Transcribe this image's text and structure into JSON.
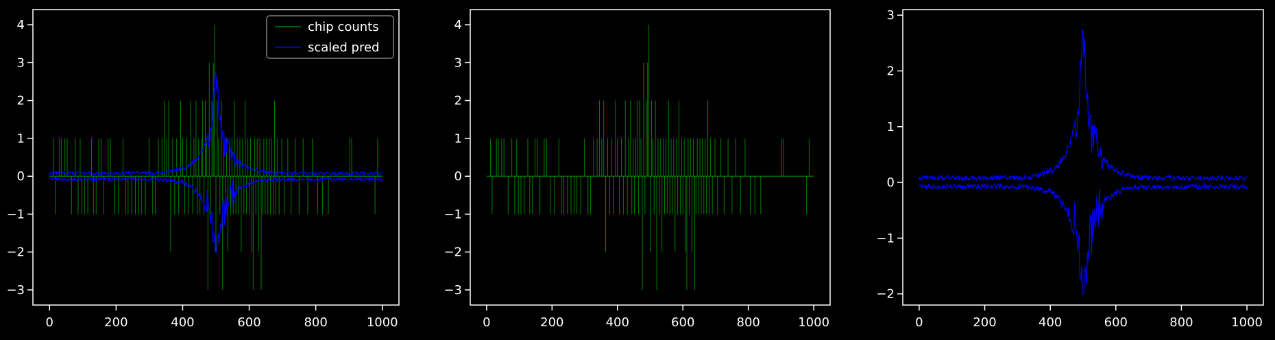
{
  "figure": {
    "background": "#000000",
    "axes_color": "#ffffff",
    "text_color": "#ffffff"
  },
  "colors": {
    "chip_counts": "#008000",
    "scaled_pred": "#0000ff"
  },
  "chart_data": [
    {
      "type": "line",
      "title": "",
      "xlabel": "",
      "ylabel": "",
      "xlim": [
        -50,
        1050
      ],
      "ylim": [
        -3.4,
        4.4
      ],
      "xticks": [
        0,
        200,
        400,
        600,
        800,
        1000
      ],
      "xtick_labels": [
        "0",
        "200",
        "400",
        "600",
        "800",
        "1000"
      ],
      "yticks": [
        -3,
        -2,
        -1,
        0,
        1,
        2,
        3,
        4
      ],
      "ytick_labels": [
        "−3",
        "−2",
        "−1",
        "0",
        "1",
        "2",
        "3",
        "4"
      ],
      "grid": false,
      "legend": {
        "position": "top-right",
        "entries": [
          "chip counts",
          "scaled pred"
        ]
      },
      "series": [
        {
          "name": "chip counts",
          "color": "#008000",
          "x_range": [
            0,
            1000
          ],
          "description_values": {
            "baseline": 0,
            "spikes": [
              [
                12,
                1
              ],
              [
                17,
                -1
              ],
              [
                30,
                1
              ],
              [
                36,
                1
              ],
              [
                46,
                1
              ],
              [
                53,
                1
              ],
              [
                66,
                -1
              ],
              [
                77,
                1
              ],
              [
                86,
                -1
              ],
              [
                92,
                1
              ],
              [
                97,
                -1
              ],
              [
                105,
                -1
              ],
              [
                115,
                -1
              ],
              [
                126,
                1
              ],
              [
                132,
                -1
              ],
              [
                140,
                -1
              ],
              [
                148,
                1
              ],
              [
                155,
                1
              ],
              [
                163,
                -1
              ],
              [
                176,
                1
              ],
              [
                183,
                1
              ],
              [
                195,
                -1
              ],
              [
                207,
                -1
              ],
              [
                221,
                1
              ],
              [
                229,
                -1
              ],
              [
                236,
                -1
              ],
              [
                247,
                -1
              ],
              [
                258,
                -1
              ],
              [
                268,
                -1
              ],
              [
                276,
                -1
              ],
              [
                288,
                -1
              ],
              [
                299,
                1
              ],
              [
                310,
                -1
              ],
              [
                318,
                -1
              ],
              [
                327,
                1
              ],
              [
                338,
                1
              ],
              [
                345,
                2
              ],
              [
                352,
                1
              ],
              [
                358,
                2
              ],
              [
                364,
                -2
              ],
              [
                370,
                1
              ],
              [
                376,
                -1
              ],
              [
                382,
                1
              ],
              [
                388,
                -1
              ],
              [
                394,
                2
              ],
              [
                400,
                1
              ],
              [
                406,
                -1
              ],
              [
                412,
                1
              ],
              [
                418,
                -1
              ],
              [
                424,
                2
              ],
              [
                430,
                -1
              ],
              [
                434,
                1
              ],
              [
                440,
                2
              ],
              [
                444,
                -1
              ],
              [
                448,
                1
              ],
              [
                452,
                -1
              ],
              [
                456,
                1
              ],
              [
                460,
                2
              ],
              [
                464,
                -1
              ],
              [
                468,
                2
              ],
              [
                472,
                1
              ],
              [
                476,
                -3
              ],
              [
                480,
                3
              ],
              [
                484,
                -1
              ],
              [
                488,
                2
              ],
              [
                492,
                3
              ],
              [
                496,
                4
              ],
              [
                500,
                -2
              ],
              [
                504,
                2
              ],
              [
                508,
                1
              ],
              [
                512,
                -1
              ],
              [
                516,
                2
              ],
              [
                520,
                -3
              ],
              [
                524,
                1
              ],
              [
                528,
                -1
              ],
              [
                532,
                1
              ],
              [
                536,
                -2
              ],
              [
                540,
                1
              ],
              [
                544,
                -1
              ],
              [
                548,
                1
              ],
              [
                552,
                -1
              ],
              [
                556,
                2
              ],
              [
                560,
                -1
              ],
              [
                564,
                1
              ],
              [
                568,
                -1
              ],
              [
                572,
                1
              ],
              [
                576,
                -2
              ],
              [
                580,
                1
              ],
              [
                584,
                -1
              ],
              [
                588,
                2
              ],
              [
                592,
                -1
              ],
              [
                596,
                1
              ],
              [
                600,
                -1
              ],
              [
                604,
                1
              ],
              [
                608,
                -2
              ],
              [
                612,
                -3
              ],
              [
                616,
                1
              ],
              [
                620,
                -1
              ],
              [
                624,
                1
              ],
              [
                628,
                -2
              ],
              [
                632,
                1
              ],
              [
                636,
                -3
              ],
              [
                640,
                -1
              ],
              [
                644,
                1
              ],
              [
                648,
                -1
              ],
              [
                652,
                1
              ],
              [
                656,
                -1
              ],
              [
                660,
                1
              ],
              [
                664,
                -1
              ],
              [
                668,
                1
              ],
              [
                672,
                -1
              ],
              [
                676,
                2
              ],
              [
                680,
                -1
              ],
              [
                684,
                1
              ],
              [
                690,
                -1
              ],
              [
                698,
                1
              ],
              [
                706,
                -1
              ],
              [
                716,
                1
              ],
              [
                726,
                -1
              ],
              [
                738,
                1
              ],
              [
                750,
                -1
              ],
              [
                762,
                1
              ],
              [
                776,
                -1
              ],
              [
                790,
                1
              ],
              [
                806,
                -1
              ],
              [
                820,
                -1
              ],
              [
                838,
                -1
              ],
              [
                902,
                1
              ],
              [
                908,
                1
              ],
              [
                978,
                -1
              ],
              [
                986,
                1
              ]
            ]
          }
        },
        {
          "name": "scaled pred",
          "color": "#0000ff",
          "x_range": [
            0,
            1000
          ],
          "description_values": {
            "upper_envelope_peak": 2.9,
            "lower_envelope_peak": -2.0,
            "peak_x": 500,
            "baseline_offset": 0.08
          }
        }
      ]
    },
    {
      "type": "line",
      "title": "",
      "xlabel": "",
      "ylabel": "",
      "xlim": [
        -50,
        1050
      ],
      "ylim": [
        -3.4,
        4.4
      ],
      "xticks": [
        0,
        200,
        400,
        600,
        800,
        1000
      ],
      "xtick_labels": [
        "0",
        "200",
        "400",
        "600",
        "800",
        "1000"
      ],
      "yticks": [
        -3,
        -2,
        -1,
        0,
        1,
        2,
        3,
        4
      ],
      "ytick_labels": [
        "−3",
        "−2",
        "−1",
        "0",
        "1",
        "2",
        "3",
        "4"
      ],
      "grid": false,
      "legend": null,
      "series": [
        {
          "name": "",
          "color": "#008000",
          "x_range": [
            0,
            1000
          ],
          "description_values": {
            "same_as": "chip counts"
          }
        }
      ]
    },
    {
      "type": "line",
      "title": "",
      "xlabel": "",
      "ylabel": "",
      "xlim": [
        -50,
        1050
      ],
      "ylim": [
        -2.2,
        3.1
      ],
      "xticks": [
        0,
        200,
        400,
        600,
        800,
        1000
      ],
      "xtick_labels": [
        "0",
        "200",
        "400",
        "600",
        "800",
        "1000"
      ],
      "yticks": [
        -2,
        -1,
        0,
        1,
        2,
        3
      ],
      "ytick_labels": [
        "−2",
        "−1",
        "0",
        "1",
        "2",
        "3"
      ],
      "grid": false,
      "legend": null,
      "series": [
        {
          "name": "",
          "color": "#0000ff",
          "x_range": [
            0,
            1000
          ],
          "description_values": {
            "upper_envelope_peak": 2.9,
            "lower_envelope_peak": -2.0,
            "peak_x": 500,
            "baseline_offset": 0.08
          }
        }
      ]
    }
  ]
}
